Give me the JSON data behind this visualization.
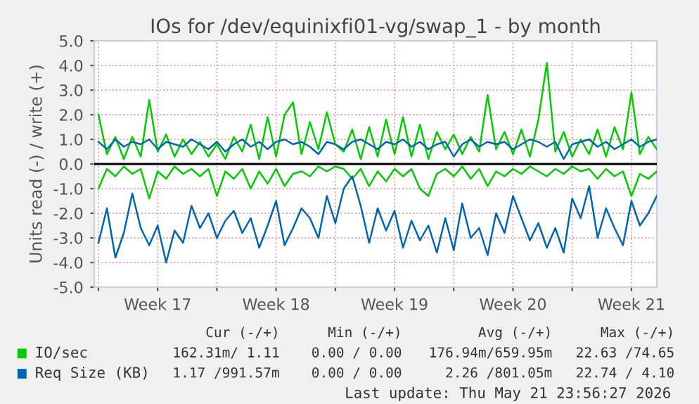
{
  "chart_data": {
    "type": "line",
    "title": "IOs for /dev/equinixfi01-vg/swap_1 - by month",
    "ylabel": "Units read (-) / write (+)",
    "x": [
      "2026-04-20T00:00",
      "2026-04-20T12:00",
      "2026-04-21T00:00",
      "2026-04-21T12:00",
      "2026-04-22T00:00",
      "2026-04-22T12:00",
      "2026-04-23T00:00",
      "2026-04-23T12:00",
      "2026-04-24T00:00",
      "2026-04-24T12:00",
      "2026-04-25T00:00",
      "2026-04-25T12:00",
      "2026-04-26T00:00",
      "2026-04-26T12:00",
      "2026-04-27T00:00",
      "2026-04-27T12:00",
      "2026-04-28T00:00",
      "2026-04-28T12:00",
      "2026-04-29T00:00",
      "2026-04-29T12:00",
      "2026-04-30T00:00",
      "2026-04-30T12:00",
      "2026-05-01T00:00",
      "2026-05-01T12:00",
      "2026-05-02T00:00",
      "2026-05-02T12:00",
      "2026-05-03T00:00",
      "2026-05-03T12:00",
      "2026-05-04T00:00",
      "2026-05-04T12:00",
      "2026-05-05T00:00",
      "2026-05-05T12:00",
      "2026-05-06T00:00",
      "2026-05-06T12:00",
      "2026-05-07T00:00",
      "2026-05-07T12:00",
      "2026-05-08T00:00",
      "2026-05-08T12:00",
      "2026-05-09T00:00",
      "2026-05-09T12:00",
      "2026-05-10T00:00",
      "2026-05-10T12:00",
      "2026-05-11T00:00",
      "2026-05-11T12:00",
      "2026-05-12T00:00",
      "2026-05-12T12:00",
      "2026-05-13T00:00",
      "2026-05-13T12:00",
      "2026-05-14T00:00",
      "2026-05-14T12:00",
      "2026-05-15T00:00",
      "2026-05-15T12:00",
      "2026-05-16T00:00",
      "2026-05-16T12:00",
      "2026-05-17T00:00",
      "2026-05-17T12:00",
      "2026-05-18T00:00",
      "2026-05-18T12:00",
      "2026-05-19T00:00",
      "2026-05-19T12:00",
      "2026-05-20T00:00",
      "2026-05-20T12:00",
      "2026-05-21T00:00",
      "2026-05-21T12:00",
      "2026-05-22T00:00",
      "2026-05-22T12:00",
      "2026-05-23T00:00"
    ],
    "series": [
      {
        "name": "IO/sec",
        "color": "#00cc00",
        "values": [
          2.0,
          0.4,
          1.1,
          0.2,
          1.1,
          0.3,
          2.6,
          0.5,
          1.2,
          0.3,
          1.0,
          0.4,
          0.9,
          0.3,
          0.8,
          0.2,
          1.1,
          0.5,
          1.6,
          0.2,
          1.9,
          0.3,
          2.0,
          2.5,
          0.4,
          1.7,
          0.6,
          2.1,
          0.8,
          0.5,
          1.4,
          0.2,
          1.5,
          0.3,
          1.8,
          0.4,
          1.9,
          0.3,
          1.6,
          0.2,
          1.3,
          0.6,
          1.2,
          0.4,
          1.1,
          0.5,
          2.8,
          0.6,
          1.3,
          0.4,
          1.4,
          0.3,
          1.8,
          4.1,
          0.5,
          1.3,
          0.3,
          1.0,
          0.4,
          1.4,
          0.3,
          1.5,
          0.6,
          2.9,
          0.4,
          1.1,
          0.6
        ]
      },
      {
        "color": "#00cc00",
        "values": [
          -1.0,
          -0.2,
          -0.5,
          -0.1,
          -0.4,
          -0.2,
          -1.4,
          -0.3,
          -0.6,
          -0.1,
          -0.4,
          -0.2,
          -0.5,
          -0.2,
          -1.3,
          -0.3,
          -0.6,
          -0.2,
          -1.0,
          -0.3,
          -0.8,
          -0.2,
          -0.9,
          -0.4,
          -0.3,
          -0.5,
          -0.1,
          -0.3,
          -0.1,
          -0.2,
          -0.6,
          -0.2,
          -0.9,
          -0.3,
          -0.7,
          -0.2,
          -0.5,
          -0.2,
          -1.0,
          -1.3,
          -0.4,
          -0.2,
          -0.5,
          -0.1,
          -0.6,
          -0.2,
          -0.9,
          -0.3,
          -0.5,
          -0.2,
          -0.4,
          -0.1,
          -0.3,
          -0.5,
          -0.2,
          -0.4,
          -0.1,
          -0.3,
          -0.2,
          -0.6,
          -0.2,
          -0.5,
          -0.3,
          -1.3,
          -0.4,
          -0.6,
          -0.3
        ]
      },
      {
        "name": "Req Size (KB)",
        "color": "#0066b3",
        "values": [
          0.9,
          0.6,
          1.0,
          0.7,
          0.9,
          0.8,
          1.0,
          0.6,
          0.9,
          0.8,
          0.7,
          1.0,
          0.8,
          0.6,
          0.9,
          0.5,
          0.8,
          1.0,
          0.7,
          0.9,
          0.6,
          0.9,
          1.0,
          0.8,
          0.9,
          0.7,
          0.4,
          0.9,
          0.8,
          0.6,
          0.9,
          1.0,
          0.8,
          0.6,
          0.9,
          0.8,
          1.0,
          0.7,
          0.9,
          0.6,
          0.8,
          0.9,
          0.3,
          0.8,
          1.0,
          0.7,
          0.9,
          0.8,
          0.9,
          0.6,
          0.8,
          1.0,
          0.9,
          0.7,
          0.9,
          0.2,
          0.8,
          0.9,
          1.0,
          0.7,
          0.9,
          0.6,
          0.8,
          1.0,
          0.7,
          0.9,
          1.0
        ]
      },
      {
        "color": "#0066b3",
        "values": [
          -3.2,
          -1.8,
          -3.8,
          -2.8,
          -1.2,
          -2.6,
          -3.3,
          -2.5,
          -4.0,
          -2.7,
          -3.2,
          -1.7,
          -2.6,
          -2.0,
          -3.0,
          -2.3,
          -1.9,
          -2.8,
          -2.2,
          -3.4,
          -2.5,
          -1.5,
          -3.3,
          -2.6,
          -1.8,
          -2.2,
          -3.0,
          -1.3,
          -2.4,
          -1.0,
          -0.5,
          -1.7,
          -3.2,
          -1.8,
          -2.7,
          -1.9,
          -3.4,
          -2.3,
          -3.1,
          -2.5,
          -3.6,
          -2.2,
          -3.5,
          -1.6,
          -3.0,
          -2.6,
          -3.7,
          -2.0,
          -2.8,
          -1.3,
          -2.2,
          -3.1,
          -2.4,
          -3.4,
          -2.6,
          -3.6,
          -1.4,
          -2.2,
          -0.9,
          -3.0,
          -1.8,
          -2.6,
          -3.3,
          -1.5,
          -2.5,
          -2.0,
          -1.3
        ]
      }
    ],
    "xlim": [
      "2026-04-19T18:00",
      "2026-05-23T00:00"
    ],
    "xticks": [
      {
        "value": "2026-04-20T00:00",
        "label": null
      },
      {
        "value": "2026-04-23T12:00",
        "label": "Week 17"
      },
      {
        "value": "2026-04-27T00:00",
        "label": null
      },
      {
        "value": "2026-04-30T12:00",
        "label": "Week 18"
      },
      {
        "value": "2026-05-04T00:00",
        "label": null
      },
      {
        "value": "2026-05-07T12:00",
        "label": "Week 19"
      },
      {
        "value": "2026-05-11T00:00",
        "label": null
      },
      {
        "value": "2026-05-14T12:00",
        "label": "Week 20"
      },
      {
        "value": "2026-05-18T00:00",
        "label": null
      },
      {
        "value": "2026-05-21T12:00",
        "label": "Week 21"
      }
    ],
    "ylim": [
      -5.0,
      5.0
    ],
    "yticks": [
      {
        "value": -5,
        "label": "-5.0"
      },
      {
        "value": -4,
        "label": "-4.0"
      },
      {
        "value": -3,
        "label": "-3.0"
      },
      {
        "value": -2,
        "label": "-2.0"
      },
      {
        "value": -1,
        "label": "-1.0"
      },
      {
        "value": 0,
        "label": "0.0"
      },
      {
        "value": 1,
        "label": "1.0"
      },
      {
        "value": 2,
        "label": "2.0"
      },
      {
        "value": 3,
        "label": "3.0"
      },
      {
        "value": 4,
        "label": "4.0"
      },
      {
        "value": 5,
        "label": "5.0"
      }
    ],
    "ref_lines": [
      {
        "axis": "y",
        "value": 0,
        "color": "#000000"
      }
    ],
    "grid": true,
    "legend": "bottom left",
    "marker": "none",
    "line_style": "solid",
    "annotations": [
      "Cur (-/+)",
      "Min (-/+)",
      "Avg (-/+)",
      "Max (-/+)",
      "162.31m/ 1.11",
      "0.00 / 0.00",
      "176.94m/659.95m",
      "22.63 /74.65",
      "1.17 /991.57m",
      "0.00 / 0.00",
      "2.26 /801.05m",
      "22.74 / 4.10",
      "Last update: Thu May 21 23:56:27 2026"
    ]
  }
}
